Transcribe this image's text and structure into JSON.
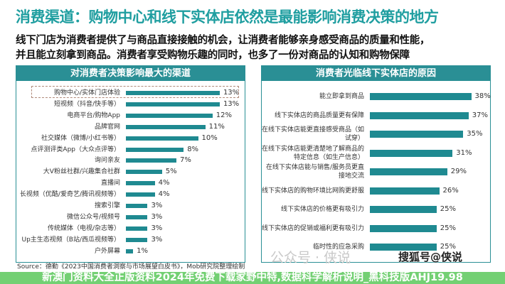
{
  "title": "消费渠道：购物中心和线下实体店依然是最能影响消费决策的地方",
  "subtitle_lines": [
    "线下门店为消费者提供了与商品直接接触的机会，让消费者能够亲身感受商品的质量和性能，",
    "并且能立刻拿到商品。消费者享受购物乐趣的同时，也多了一份对商品的认知和购物保障"
  ],
  "colors": {
    "title": "#1f9ea0",
    "bar": "#1f8a91",
    "banner": "#5ac85a"
  },
  "chart_data": [
    {
      "type": "bar",
      "orientation": "horizontal",
      "title": "对消费者决策影响最大的渠道",
      "unit": "%",
      "categories": [
        "购物中心/实体门店体验",
        "短视频（抖音/快手等）",
        "电商平台/购物App",
        "品牌官网",
        "社交媒体（微博/小红书等）",
        "点评测评类App（大众点评等）",
        "询问亲友",
        "大V粉丝社群/兴趣集合社群",
        "直播间",
        "长视频（优酷/爱奇艺/腾讯视频等）",
        "搜索引擎",
        "微信公众号/视频号",
        "传统媒体（电视/杂志等）",
        "Up主生态视频（B站/西瓜视频等）",
        "户外屏幕"
      ],
      "values": [
        13,
        13,
        12,
        11,
        10,
        8,
        7,
        5,
        4,
        4,
        3,
        3,
        3,
        3,
        1
      ],
      "labels": [
        "13%",
        "13%",
        "12%",
        "11%",
        "10%",
        "8%",
        "7%",
        "5%",
        "4%",
        "4%",
        "3%",
        "3%",
        "3%",
        "3%",
        "1%"
      ],
      "highlighted": "购物中心/实体门店体验"
    },
    {
      "type": "bar",
      "orientation": "horizontal",
      "title": "消费者光临线下实体店的原因",
      "unit": "%",
      "categories": [
        "能立即拿到商品",
        "线下实体店的商品质量更有保障",
        "在线下实体店能更直接感受商品（如试穿）",
        "在线下实体店能更清楚地了解商品的特定信息（如生产信息）",
        "在线下实体店能与销售/服务员更直接地交流",
        "线下实体店的购物环境比网购更舒服",
        "线下实体店的价格更有吸引力",
        "线下实体店的促销或福利更有吸引力",
        "临时性的应急采购"
      ],
      "values": [
        38,
        37,
        35,
        31,
        29,
        26,
        25,
        25,
        25
      ],
      "labels": [
        "38%",
        "37%",
        "35%",
        "31%",
        "29%",
        "26%",
        "25%",
        "25%",
        "25%"
      ]
    }
  ],
  "source": "Source：德勤《2023中国消费者洞察与市场展望白皮书》，Mob研究院整理绘制",
  "banner": "新澳门资料大全正版资料2024年免费下载家野中特,数据科学解析说明_黑科技版AHJ19.98",
  "watermarks": [
    "公众号 · 侠说",
    "搜狐号@侠说"
  ]
}
